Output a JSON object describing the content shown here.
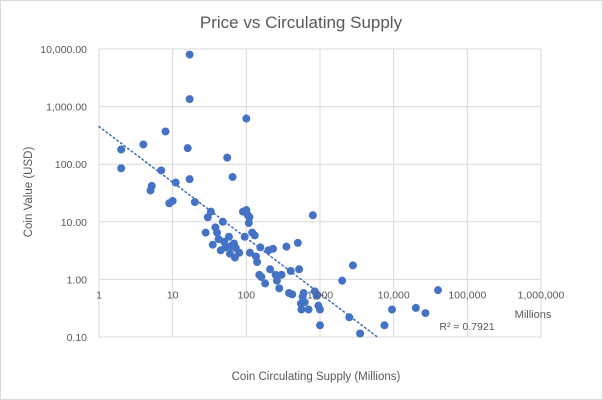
{
  "chart_data": {
    "type": "scatter",
    "title": "Price vs Circulating Supply",
    "xlabel": "Coin Circulating Supply (Millions)",
    "ylabel": "Coin Value (USD)",
    "x_display_unit": "Millions",
    "x_scale": "log",
    "y_scale": "log",
    "xlim": [
      1,
      1000000
    ],
    "ylim": [
      0.1,
      10000
    ],
    "x_tick_labels": [
      "1",
      "10",
      "100",
      "1,000",
      "10,000",
      "100,000",
      "1,000,000"
    ],
    "y_tick_labels": [
      "0.10",
      "1.00",
      "10.00",
      "100.00",
      "1,000.00",
      "10,000.00"
    ],
    "grid": true,
    "legend": "none",
    "marker_color": "#4472c4",
    "trendline": {
      "type": "power",
      "style": "dotted",
      "color": "#4472c4",
      "start": [
        1,
        450
      ],
      "end": [
        6000,
        0.1
      ],
      "r2_label": "R² = 0.7921"
    },
    "points": [
      {
        "x": 2,
        "y": 180
      },
      {
        "x": 2,
        "y": 85
      },
      {
        "x": 4,
        "y": 220
      },
      {
        "x": 5,
        "y": 35
      },
      {
        "x": 5.2,
        "y": 42
      },
      {
        "x": 7,
        "y": 78
      },
      {
        "x": 8,
        "y": 370
      },
      {
        "x": 9,
        "y": 21
      },
      {
        "x": 10,
        "y": 23
      },
      {
        "x": 11,
        "y": 48
      },
      {
        "x": 16,
        "y": 190
      },
      {
        "x": 17,
        "y": 8000
      },
      {
        "x": 17,
        "y": 1350
      },
      {
        "x": 17,
        "y": 55
      },
      {
        "x": 20,
        "y": 22
      },
      {
        "x": 28,
        "y": 6.5
      },
      {
        "x": 30,
        "y": 12
      },
      {
        "x": 33,
        "y": 15
      },
      {
        "x": 35,
        "y": 4
      },
      {
        "x": 38,
        "y": 8
      },
      {
        "x": 40,
        "y": 6.5
      },
      {
        "x": 42,
        "y": 5
      },
      {
        "x": 45,
        "y": 3.2
      },
      {
        "x": 48,
        "y": 10
      },
      {
        "x": 50,
        "y": 4.5
      },
      {
        "x": 52,
        "y": 3.6
      },
      {
        "x": 55,
        "y": 130
      },
      {
        "x": 58,
        "y": 5.5
      },
      {
        "x": 60,
        "y": 2.8
      },
      {
        "x": 62,
        "y": 3.8
      },
      {
        "x": 65,
        "y": 60
      },
      {
        "x": 68,
        "y": 4.2
      },
      {
        "x": 70,
        "y": 2.4
      },
      {
        "x": 72,
        "y": 3.5
      },
      {
        "x": 80,
        "y": 2.9
      },
      {
        "x": 90,
        "y": 15
      },
      {
        "x": 95,
        "y": 5.5
      },
      {
        "x": 100,
        "y": 620
      },
      {
        "x": 100,
        "y": 16
      },
      {
        "x": 105,
        "y": 13
      },
      {
        "x": 108,
        "y": 9.5
      },
      {
        "x": 110,
        "y": 12
      },
      {
        "x": 112,
        "y": 2.9
      },
      {
        "x": 120,
        "y": 6.5
      },
      {
        "x": 130,
        "y": 5.8
      },
      {
        "x": 135,
        "y": 2.5
      },
      {
        "x": 140,
        "y": 2
      },
      {
        "x": 150,
        "y": 1.2
      },
      {
        "x": 155,
        "y": 3.6
      },
      {
        "x": 160,
        "y": 1.1
      },
      {
        "x": 180,
        "y": 0.85
      },
      {
        "x": 200,
        "y": 3.2
      },
      {
        "x": 210,
        "y": 1.5
      },
      {
        "x": 230,
        "y": 3.4
      },
      {
        "x": 250,
        "y": 1.2
      },
      {
        "x": 260,
        "y": 0.95
      },
      {
        "x": 280,
        "y": 0.7
      },
      {
        "x": 300,
        "y": 1.2
      },
      {
        "x": 350,
        "y": 3.7
      },
      {
        "x": 380,
        "y": 0.58
      },
      {
        "x": 400,
        "y": 1.4
      },
      {
        "x": 420,
        "y": 0.55
      },
      {
        "x": 500,
        "y": 4.3
      },
      {
        "x": 520,
        "y": 1.5
      },
      {
        "x": 550,
        "y": 0.38
      },
      {
        "x": 560,
        "y": 0.3
      },
      {
        "x": 580,
        "y": 0.5
      },
      {
        "x": 600,
        "y": 0.58
      },
      {
        "x": 620,
        "y": 0.4
      },
      {
        "x": 700,
        "y": 0.3
      },
      {
        "x": 800,
        "y": 13
      },
      {
        "x": 850,
        "y": 0.62
      },
      {
        "x": 900,
        "y": 0.52
      },
      {
        "x": 950,
        "y": 0.35
      },
      {
        "x": 1000,
        "y": 0.3
      },
      {
        "x": 1000,
        "y": 0.16
      },
      {
        "x": 2000,
        "y": 0.95
      },
      {
        "x": 2500,
        "y": 0.22
      },
      {
        "x": 2800,
        "y": 1.75
      },
      {
        "x": 3500,
        "y": 0.115
      },
      {
        "x": 7500,
        "y": 0.16
      },
      {
        "x": 9500,
        "y": 0.3
      },
      {
        "x": 20000,
        "y": 0.32
      },
      {
        "x": 27000,
        "y": 0.26
      },
      {
        "x": 40000,
        "y": 0.65
      }
    ]
  }
}
